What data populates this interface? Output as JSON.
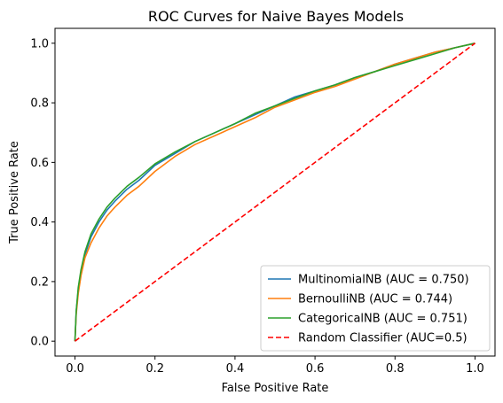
{
  "chart_data": {
    "type": "line",
    "title": "ROC Curves for Naive Bayes Models",
    "xlabel": "False Positive Rate",
    "ylabel": "True Positive Rate",
    "xlim": [
      -0.05,
      1.05
    ],
    "ylim": [
      -0.05,
      1.05
    ],
    "xticks": [
      "0.0",
      "0.2",
      "0.4",
      "0.6",
      "0.8",
      "1.0"
    ],
    "yticks": [
      "0.0",
      "0.2",
      "0.4",
      "0.6",
      "0.8",
      "1.0"
    ],
    "grid": false,
    "legend_position": "lower-right",
    "series": [
      {
        "name": "MultinomialNB (AUC = 0.750)",
        "color": "#1f77b4",
        "style": "solid",
        "x": [
          0,
          0.003,
          0.008,
          0.015,
          0.025,
          0.04,
          0.06,
          0.08,
          0.1,
          0.13,
          0.16,
          0.2,
          0.25,
          0.3,
          0.35,
          0.4,
          0.45,
          0.5,
          0.55,
          0.6,
          0.65,
          0.7,
          0.75,
          0.8,
          0.85,
          0.9,
          0.95,
          1.0
        ],
        "y": [
          0,
          0.1,
          0.17,
          0.23,
          0.29,
          0.35,
          0.4,
          0.44,
          0.47,
          0.51,
          0.54,
          0.59,
          0.63,
          0.67,
          0.7,
          0.73,
          0.76,
          0.79,
          0.82,
          0.84,
          0.86,
          0.885,
          0.905,
          0.93,
          0.95,
          0.97,
          0.985,
          1.0
        ]
      },
      {
        "name": "BernoulliNB (AUC = 0.744)",
        "color": "#ff7f0e",
        "style": "solid",
        "x": [
          0,
          0.003,
          0.008,
          0.015,
          0.025,
          0.04,
          0.06,
          0.08,
          0.1,
          0.13,
          0.16,
          0.2,
          0.25,
          0.3,
          0.35,
          0.4,
          0.45,
          0.5,
          0.55,
          0.6,
          0.65,
          0.7,
          0.75,
          0.8,
          0.85,
          0.9,
          0.95,
          1.0
        ],
        "y": [
          0,
          0.09,
          0.16,
          0.22,
          0.28,
          0.33,
          0.38,
          0.42,
          0.45,
          0.49,
          0.52,
          0.57,
          0.62,
          0.66,
          0.69,
          0.72,
          0.75,
          0.785,
          0.81,
          0.835,
          0.855,
          0.88,
          0.905,
          0.93,
          0.95,
          0.97,
          0.985,
          1.0
        ]
      },
      {
        "name": "CategoricalNB (AUC = 0.751)",
        "color": "#2ca02c",
        "style": "solid",
        "x": [
          0,
          0.003,
          0.008,
          0.015,
          0.025,
          0.04,
          0.06,
          0.08,
          0.1,
          0.13,
          0.16,
          0.2,
          0.25,
          0.3,
          0.35,
          0.4,
          0.45,
          0.5,
          0.55,
          0.6,
          0.65,
          0.7,
          0.75,
          0.8,
          0.85,
          0.9,
          0.95,
          1.0
        ],
        "y": [
          0,
          0.1,
          0.18,
          0.24,
          0.3,
          0.36,
          0.41,
          0.45,
          0.48,
          0.52,
          0.55,
          0.595,
          0.635,
          0.67,
          0.7,
          0.73,
          0.765,
          0.79,
          0.815,
          0.84,
          0.86,
          0.885,
          0.905,
          0.925,
          0.945,
          0.965,
          0.985,
          1.0
        ]
      },
      {
        "name": "Random Classifier (AUC=0.5)",
        "color": "#ff0000",
        "style": "dashed",
        "x": [
          0,
          1
        ],
        "y": [
          0,
          1
        ]
      }
    ]
  }
}
